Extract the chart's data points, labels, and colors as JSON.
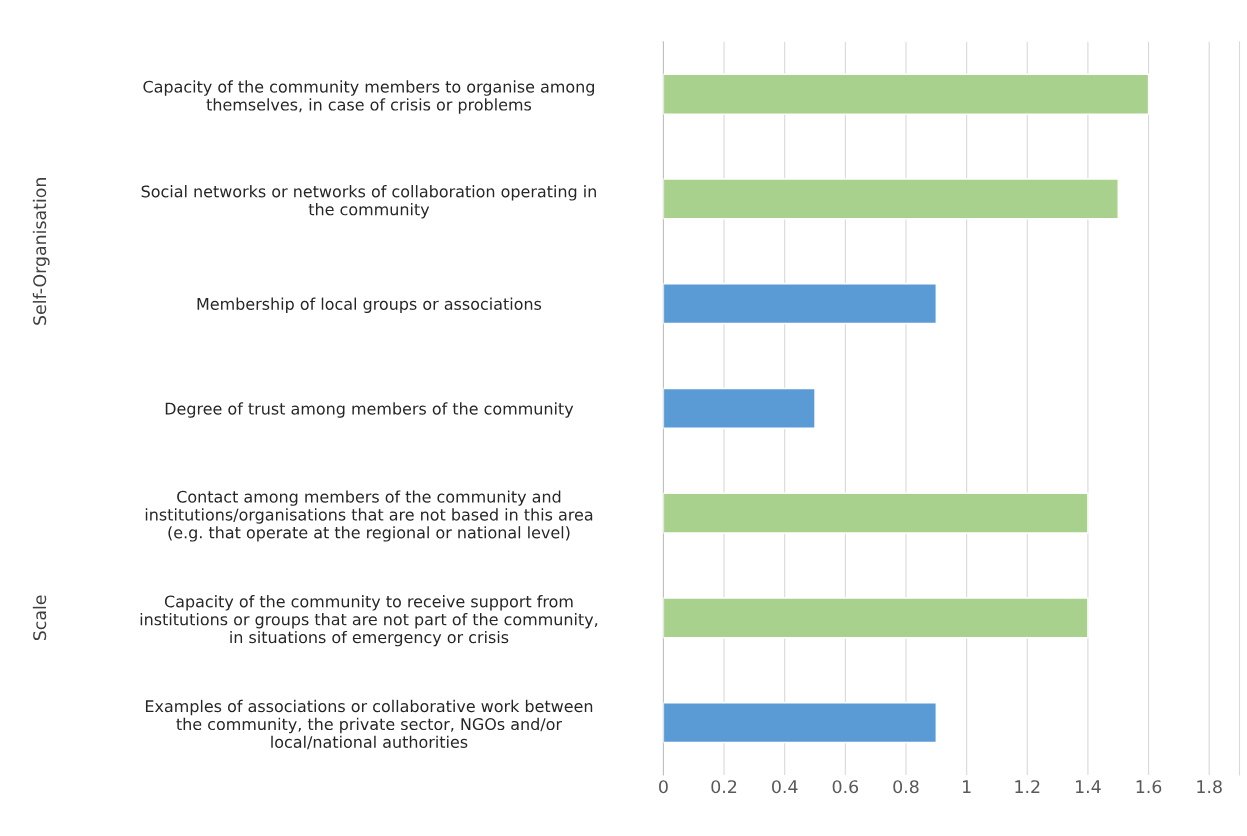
{
  "chart_data": {
    "type": "bar",
    "orientation": "horizontal",
    "categories": [
      "Capacity of the community members to organise among\nthemselves, in case of crisis or problems",
      "Social networks or networks of collaboration operating in\nthe community",
      "Membership of local groups or associations",
      "Degree of trust among members of the community",
      "Contact among members of the community and\ninstitutions/organisations that are not based in this area\n(e.g. that operate at the regional or national level)",
      "Capacity of the community to receive support from\ninstitutions or groups that are not part of the community,\nin situations of emergency or crisis",
      "Examples of associations or collaborative work between\nthe community, the private sector, NGOs and/or\nlocal/national authorities"
    ],
    "values": [
      1.6,
      1.5,
      0.9,
      0.5,
      1.4,
      1.4,
      0.9
    ],
    "colors": [
      "#a9d18e",
      "#a9d18e",
      "#5b9bd5",
      "#5b9bd5",
      "#a9d18e",
      "#a9d18e",
      "#5b9bd5"
    ],
    "xlim": [
      0,
      1.9
    ],
    "xticks": [
      0,
      0.2,
      0.4,
      0.6,
      0.8,
      1,
      1.2,
      1.4,
      1.6,
      1.8
    ],
    "grid": "x",
    "annotations": [
      "Self-Organisation",
      "Scale"
    ]
  }
}
